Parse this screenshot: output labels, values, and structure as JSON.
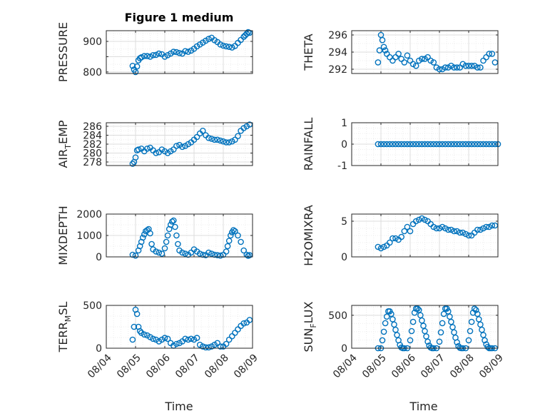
{
  "title": "Figure 1 medium",
  "colors": {
    "marker": "#0072BD",
    "axis": "#262626",
    "grid": "#dcdcdc",
    "minorgrid": "#ededed"
  },
  "x_tick_labels": [
    "08/04",
    "08/05",
    "08/06",
    "08/07",
    "08/08",
    "08/09"
  ],
  "x_label": "Time",
  "chart_data": [
    {
      "type": "scatter",
      "id": "pressure",
      "ylabel_main": "PRESSURE",
      "ylabel_sub": "",
      "ylabel_tail": "",
      "ylim": [
        795,
        935
      ],
      "yticks": [
        800,
        850,
        900
      ],
      "yticklabels": [
        "800",
        "",
        "900"
      ],
      "minor_step": 25,
      "grid": true,
      "x": [
        0.9,
        0.95,
        1.0,
        1.05,
        1.1,
        1.15,
        1.2,
        1.3,
        1.4,
        1.5,
        1.6,
        1.7,
        1.8,
        1.9,
        2.0,
        2.1,
        2.2,
        2.3,
        2.4,
        2.5,
        2.6,
        2.7,
        2.8,
        2.9,
        3.0,
        3.1,
        3.2,
        3.3,
        3.4,
        3.5,
        3.6,
        3.7,
        3.8,
        3.9,
        4.0,
        4.1,
        4.2,
        4.3,
        4.4,
        4.5,
        4.6,
        4.7,
        4.75,
        4.8,
        4.85,
        4.9
      ],
      "y": [
        820,
        808,
        800,
        818,
        838,
        845,
        848,
        852,
        852,
        850,
        855,
        856,
        860,
        858,
        850,
        855,
        860,
        866,
        865,
        862,
        860,
        868,
        866,
        870,
        876,
        884,
        890,
        896,
        902,
        908,
        912,
        904,
        898,
        890,
        886,
        884,
        882,
        880,
        885,
        895,
        905,
        915,
        920,
        925,
        930,
        928
      ]
    },
    {
      "type": "scatter",
      "id": "theta",
      "ylabel_main": "THETA",
      "ylabel_sub": "",
      "ylabel_tail": "",
      "ylim": [
        291.5,
        296.5
      ],
      "yticks": [
        292,
        294,
        296
      ],
      "yticklabels": [
        "292",
        "294",
        "296"
      ],
      "minor_step": 1,
      "grid": true,
      "x": [
        0.9,
        0.95,
        1.0,
        1.05,
        1.1,
        1.15,
        1.2,
        1.3,
        1.4,
        1.5,
        1.6,
        1.7,
        1.8,
        1.9,
        2.0,
        2.1,
        2.2,
        2.3,
        2.4,
        2.5,
        2.6,
        2.7,
        2.8,
        2.9,
        3.0,
        3.1,
        3.2,
        3.3,
        3.4,
        3.5,
        3.6,
        3.7,
        3.8,
        3.9,
        4.0,
        4.1,
        4.2,
        4.3,
        4.4,
        4.5,
        4.6,
        4.7,
        4.8,
        4.9
      ],
      "y": [
        292.8,
        294.2,
        296.0,
        295.4,
        294.6,
        294.2,
        293.8,
        293.4,
        293.0,
        293.4,
        293.8,
        293.2,
        292.8,
        293.6,
        293.0,
        292.6,
        292.4,
        293.0,
        293.2,
        293.2,
        293.4,
        293.0,
        292.8,
        292.2,
        292.0,
        292.0,
        292.2,
        292.2,
        292.4,
        292.2,
        292.2,
        292.2,
        292.6,
        292.4,
        292.4,
        292.4,
        292.4,
        292.2,
        292.2,
        293.0,
        293.4,
        293.8,
        293.8,
        292.8
      ]
    },
    {
      "type": "scatter",
      "id": "air_temp",
      "ylabel_main": "AIR",
      "ylabel_sub": "T",
      "ylabel_tail": "EMP",
      "ylim": [
        277.2,
        286.8
      ],
      "yticks": [
        278,
        280,
        282,
        284,
        286
      ],
      "yticklabels": [
        "278",
        "280",
        "282",
        "284",
        "286"
      ],
      "minor_step": 1,
      "grid": true,
      "x": [
        0.9,
        0.95,
        1.0,
        1.05,
        1.1,
        1.2,
        1.3,
        1.4,
        1.5,
        1.6,
        1.7,
        1.8,
        1.9,
        2.0,
        2.1,
        2.2,
        2.3,
        2.4,
        2.5,
        2.6,
        2.7,
        2.8,
        2.9,
        3.0,
        3.1,
        3.2,
        3.3,
        3.4,
        3.5,
        3.6,
        3.7,
        3.8,
        3.9,
        4.0,
        4.1,
        4.2,
        4.3,
        4.4,
        4.5,
        4.6,
        4.7,
        4.8,
        4.9
      ],
      "y": [
        277.6,
        278.0,
        279.0,
        280.6,
        280.8,
        281.0,
        280.4,
        281.0,
        281.2,
        280.6,
        280.0,
        280.2,
        280.8,
        280.4,
        280.0,
        280.4,
        280.8,
        281.6,
        281.8,
        281.4,
        281.6,
        282.0,
        282.4,
        283.0,
        283.6,
        284.4,
        285.0,
        284.0,
        283.4,
        283.2,
        283.0,
        283.0,
        282.8,
        282.6,
        282.4,
        282.4,
        282.6,
        283.0,
        283.8,
        285.0,
        285.6,
        286.0,
        286.4
      ]
    },
    {
      "type": "scatter",
      "id": "rainfall",
      "ylabel_main": "RAINFALL",
      "ylabel_sub": "",
      "ylabel_tail": "",
      "ylim": [
        -1,
        1
      ],
      "yticks": [
        -1,
        0,
        1
      ],
      "yticklabels": [
        "-1",
        "0",
        "1"
      ],
      "minor_step": 0.25,
      "grid": true,
      "x": [
        0.9,
        1.0,
        1.1,
        1.2,
        1.3,
        1.4,
        1.5,
        1.6,
        1.7,
        1.8,
        1.9,
        2.0,
        2.1,
        2.2,
        2.3,
        2.4,
        2.5,
        2.6,
        2.7,
        2.8,
        2.9,
        3.0,
        3.1,
        3.2,
        3.3,
        3.4,
        3.5,
        3.6,
        3.7,
        3.8,
        3.9,
        4.0,
        4.1,
        4.2,
        4.3,
        4.4,
        4.5,
        4.6,
        4.7,
        4.8,
        4.9,
        5.0
      ],
      "y": [
        0,
        0,
        0,
        0,
        0,
        0,
        0,
        0,
        0,
        0,
        0,
        0,
        0,
        0,
        0,
        0,
        0,
        0,
        0,
        0,
        0,
        0,
        0,
        0,
        0,
        0,
        0,
        0,
        0,
        0,
        0,
        0,
        0,
        0,
        0,
        0,
        0,
        0,
        0,
        0,
        0,
        0
      ]
    },
    {
      "type": "scatter",
      "id": "mixdepth",
      "ylabel_main": "MIXDEPTH",
      "ylabel_sub": "",
      "ylabel_tail": "",
      "ylim": [
        0,
        2000
      ],
      "yticks": [
        0,
        1000,
        2000
      ],
      "yticklabels": [
        "0",
        "1000",
        "2000"
      ],
      "minor_step": 500,
      "grid": true,
      "x": [
        0.9,
        1.0,
        1.1,
        1.15,
        1.2,
        1.25,
        1.3,
        1.35,
        1.4,
        1.45,
        1.5,
        1.55,
        1.6,
        1.7,
        1.8,
        1.9,
        2.0,
        2.05,
        2.1,
        2.15,
        2.2,
        2.25,
        2.3,
        2.35,
        2.4,
        2.45,
        2.5,
        2.6,
        2.7,
        2.8,
        2.9,
        3.0,
        3.1,
        3.2,
        3.3,
        3.4,
        3.5,
        3.6,
        3.7,
        3.8,
        3.9,
        4.0,
        4.1,
        4.15,
        4.2,
        4.25,
        4.3,
        4.35,
        4.4,
        4.5,
        4.6,
        4.7,
        4.8,
        4.85,
        4.9
      ],
      "y": [
        100,
        60,
        300,
        500,
        700,
        900,
        1050,
        1200,
        1250,
        1300,
        1100,
        600,
        350,
        250,
        200,
        150,
        400,
        700,
        1000,
        1300,
        1500,
        1650,
        1700,
        1400,
        1000,
        600,
        300,
        200,
        150,
        100,
        200,
        350,
        250,
        150,
        100,
        80,
        200,
        150,
        100,
        80,
        60,
        100,
        250,
        500,
        750,
        1000,
        1150,
        1250,
        1200,
        1000,
        700,
        300,
        100,
        50,
        80
      ]
    },
    {
      "type": "scatter",
      "id": "h2omixra",
      "ylabel_main": "H2OMIXRA",
      "ylabel_sub": "",
      "ylabel_tail": "",
      "ylim": [
        0,
        6
      ],
      "yticks": [
        0,
        5
      ],
      "yticklabels": [
        "0",
        "5"
      ],
      "minor_step": 1,
      "grid": true,
      "x": [
        0.9,
        1.0,
        1.1,
        1.2,
        1.3,
        1.4,
        1.5,
        1.6,
        1.7,
        1.8,
        1.9,
        2.0,
        2.1,
        2.2,
        2.3,
        2.4,
        2.5,
        2.6,
        2.7,
        2.8,
        2.9,
        3.0,
        3.1,
        3.2,
        3.3,
        3.4,
        3.5,
        3.6,
        3.7,
        3.8,
        3.9,
        4.0,
        4.1,
        4.2,
        4.3,
        4.4,
        4.5,
        4.6,
        4.7,
        4.8,
        4.9
      ],
      "y": [
        1.4,
        1.2,
        1.4,
        1.6,
        2.0,
        2.6,
        2.6,
        2.4,
        2.8,
        3.6,
        4.2,
        3.6,
        4.6,
        5.0,
        5.2,
        5.4,
        5.2,
        5.0,
        4.6,
        4.2,
        4.0,
        4.0,
        4.2,
        4.0,
        3.8,
        3.8,
        3.6,
        3.6,
        3.4,
        3.4,
        3.2,
        3.0,
        3.0,
        3.4,
        3.8,
        3.8,
        4.0,
        4.2,
        4.2,
        4.4,
        4.4
      ]
    },
    {
      "type": "scatter",
      "id": "terr_msl",
      "ylabel_main": "TERR",
      "ylabel_sub": "M",
      "ylabel_tail": "SL",
      "ylim": [
        0,
        500
      ],
      "yticks": [
        0,
        500
      ],
      "yticklabels": [
        "0",
        "500"
      ],
      "minor_step": 125,
      "grid": true,
      "x": [
        0.9,
        0.95,
        1.0,
        1.05,
        1.1,
        1.15,
        1.2,
        1.3,
        1.4,
        1.5,
        1.6,
        1.7,
        1.8,
        1.9,
        2.0,
        2.1,
        2.2,
        2.3,
        2.4,
        2.5,
        2.6,
        2.7,
        2.8,
        2.9,
        3.0,
        3.1,
        3.2,
        3.3,
        3.4,
        3.5,
        3.6,
        3.7,
        3.8,
        3.9,
        4.0,
        4.1,
        4.2,
        4.3,
        4.4,
        4.5,
        4.6,
        4.7,
        4.8,
        4.9
      ],
      "y": [
        100,
        250,
        450,
        400,
        250,
        200,
        180,
        160,
        150,
        130,
        110,
        100,
        80,
        100,
        120,
        110,
        60,
        30,
        50,
        60,
        80,
        110,
        100,
        110,
        100,
        120,
        40,
        20,
        10,
        10,
        20,
        40,
        60,
        20,
        20,
        50,
        100,
        140,
        180,
        220,
        260,
        290,
        300,
        330
      ]
    },
    {
      "type": "scatter",
      "id": "sun_flux",
      "ylabel_main": "SUN",
      "ylabel_sub": "F",
      "ylabel_tail": "LUX",
      "ylim": [
        0,
        650
      ],
      "yticks": [
        0,
        500
      ],
      "yticklabels": [
        "0",
        "500"
      ],
      "minor_step": 125,
      "grid": true,
      "x": [
        0.9,
        1.0,
        1.05,
        1.1,
        1.15,
        1.2,
        1.25,
        1.3,
        1.35,
        1.4,
        1.45,
        1.5,
        1.55,
        1.6,
        1.65,
        1.7,
        1.75,
        1.8,
        1.9,
        2.0,
        2.05,
        2.1,
        2.15,
        2.2,
        2.25,
        2.3,
        2.35,
        2.4,
        2.45,
        2.5,
        2.55,
        2.6,
        2.65,
        2.7,
        2.75,
        2.8,
        2.9,
        3.0,
        3.05,
        3.1,
        3.15,
        3.2,
        3.25,
        3.3,
        3.35,
        3.4,
        3.45,
        3.5,
        3.55,
        3.6,
        3.65,
        3.7,
        3.75,
        3.8,
        3.9,
        4.0,
        4.05,
        4.1,
        4.15,
        4.2,
        4.25,
        4.3,
        4.35,
        4.4,
        4.45,
        4.5,
        4.55,
        4.6,
        4.65,
        4.7,
        4.75,
        4.8,
        4.9
      ],
      "y": [
        0,
        0,
        120,
        250,
        380,
        480,
        560,
        560,
        520,
        440,
        360,
        280,
        200,
        120,
        50,
        10,
        0,
        0,
        0,
        120,
        260,
        400,
        540,
        600,
        600,
        580,
        500,
        420,
        340,
        260,
        180,
        100,
        40,
        10,
        0,
        0,
        0,
        100,
        240,
        380,
        520,
        600,
        600,
        560,
        480,
        400,
        320,
        240,
        160,
        90,
        30,
        5,
        0,
        0,
        0,
        120,
        260,
        400,
        540,
        600,
        580,
        520,
        440,
        360,
        280,
        200,
        120,
        60,
        20,
        0,
        0,
        0,
        0
      ]
    }
  ]
}
